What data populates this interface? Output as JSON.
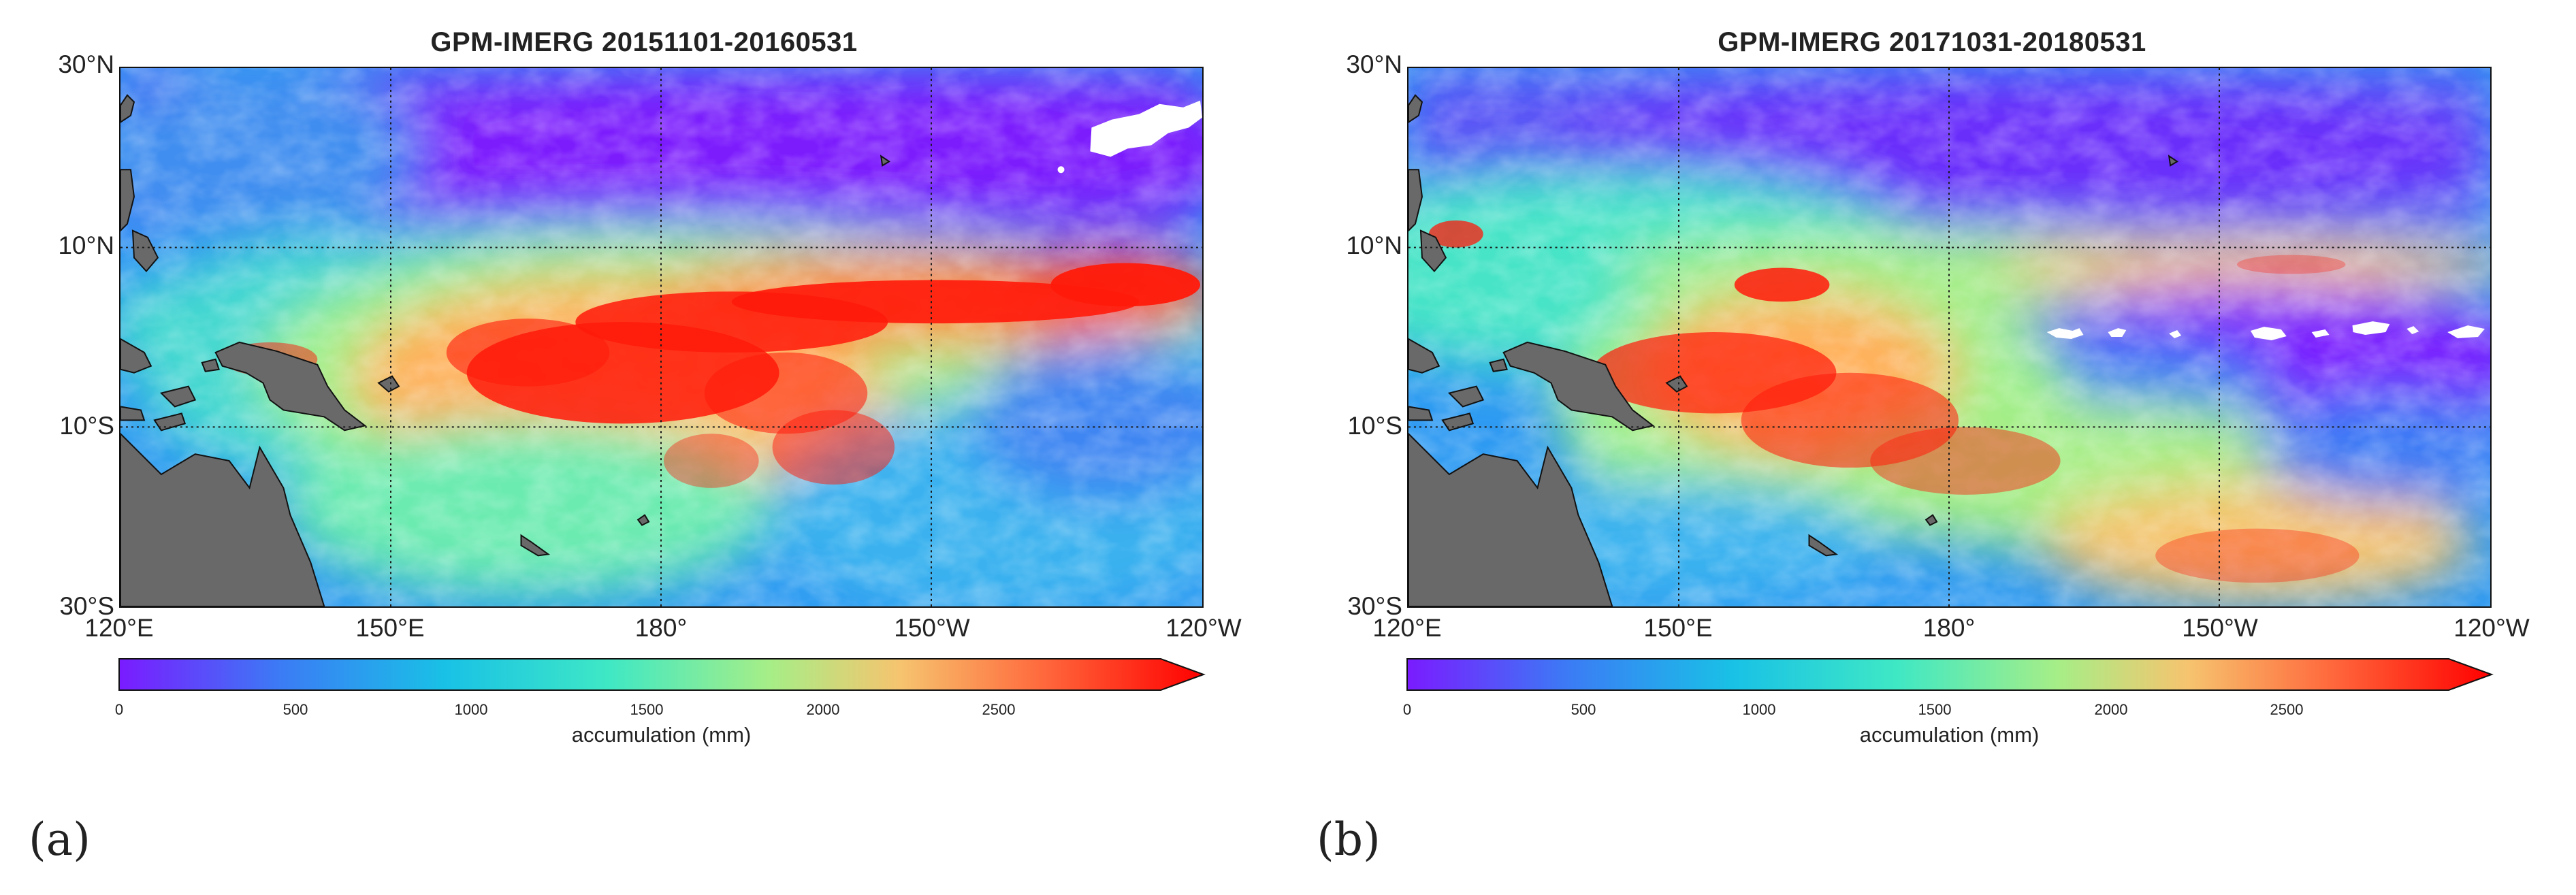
{
  "panels": [
    {
      "id": "a",
      "title": "GPM-IMERG  20151101-20160531",
      "label": "(a)",
      "lat_labels": [
        "30°N",
        "10°N",
        "10°S",
        "30°S"
      ],
      "lon_labels": [
        "120°E",
        "150°E",
        "180°",
        "150°W",
        "120°W"
      ],
      "colorbar": {
        "ticks": [
          "0",
          "500",
          "1000",
          "1500",
          "2000",
          "2500"
        ],
        "title": "accumulation (mm)"
      }
    },
    {
      "id": "b",
      "title": "GPM-IMERG  20171031-20180531",
      "label": "(b)",
      "lat_labels": [
        "30°N",
        "10°N",
        "10°S",
        "30°S"
      ],
      "lon_labels": [
        "120°E",
        "150°E",
        "180°",
        "150°W",
        "120°W"
      ],
      "colorbar": {
        "ticks": [
          "0",
          "500",
          "1000",
          "1500",
          "2000",
          "2500"
        ],
        "title": "accumulation (mm)"
      }
    }
  ],
  "colors": {
    "land": "#696969",
    "no_data": "#ffffff",
    "scale": [
      "#7a1bff",
      "#3b7cf5",
      "#19c1e6",
      "#3ee8c5",
      "#a6ee87",
      "#f6c46f",
      "#ff6a3d",
      "#ff0000"
    ]
  }
}
